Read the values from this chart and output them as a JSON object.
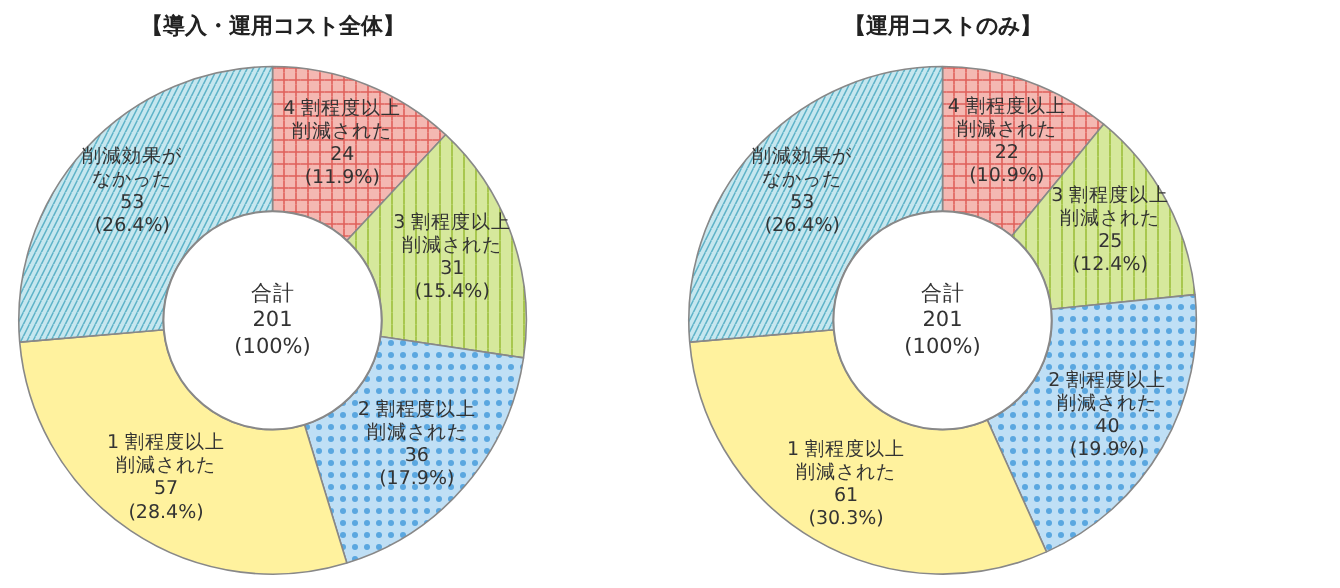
{
  "chart_data": [
    {
      "type": "donut",
      "title": "【導入・運用コスト全体】",
      "annotations": [
        "合計\n201\n(100%)"
      ],
      "categories": [
        "4 割程度以上削減された",
        "3 割程度以上削減された",
        "2 割程度以上削減された",
        "1 割程度以上削減された",
        "削減効果がなかった"
      ],
      "values": [
        24,
        31,
        36,
        57,
        53
      ],
      "value_labels": [
        "24\n(11.9%)",
        "31\n(15.4%)",
        "36\n(17.9%)",
        "57\n(28.4%)",
        "53\n(26.4%)"
      ],
      "colors": [
        "#f4b8b2",
        "#d6e89c",
        "#bfdff5",
        "#fff29e",
        "#c6e7ef"
      ]
    },
    {
      "type": "donut",
      "title": "【運用コストのみ】",
      "annotations": [
        "合計\n201\n(100%)"
      ],
      "categories": [
        "4 割程度以上削減された",
        "3 割程度以上削減された",
        "2 割程度以上削減された",
        "1 割程度以上削減された",
        "削減効果がなかった"
      ],
      "values": [
        22,
        25,
        40,
        61,
        53
      ],
      "value_labels": [
        "22\n(10.9%)",
        "25\n(12.4%)",
        "40\n(19.9%)",
        "61\n(30.3%)",
        "53\n(26.4%)"
      ],
      "colors": [
        "#f4b8b2",
        "#d6e89c",
        "#bfdff5",
        "#fff29e",
        "#c6e7ef"
      ]
    }
  ]
}
